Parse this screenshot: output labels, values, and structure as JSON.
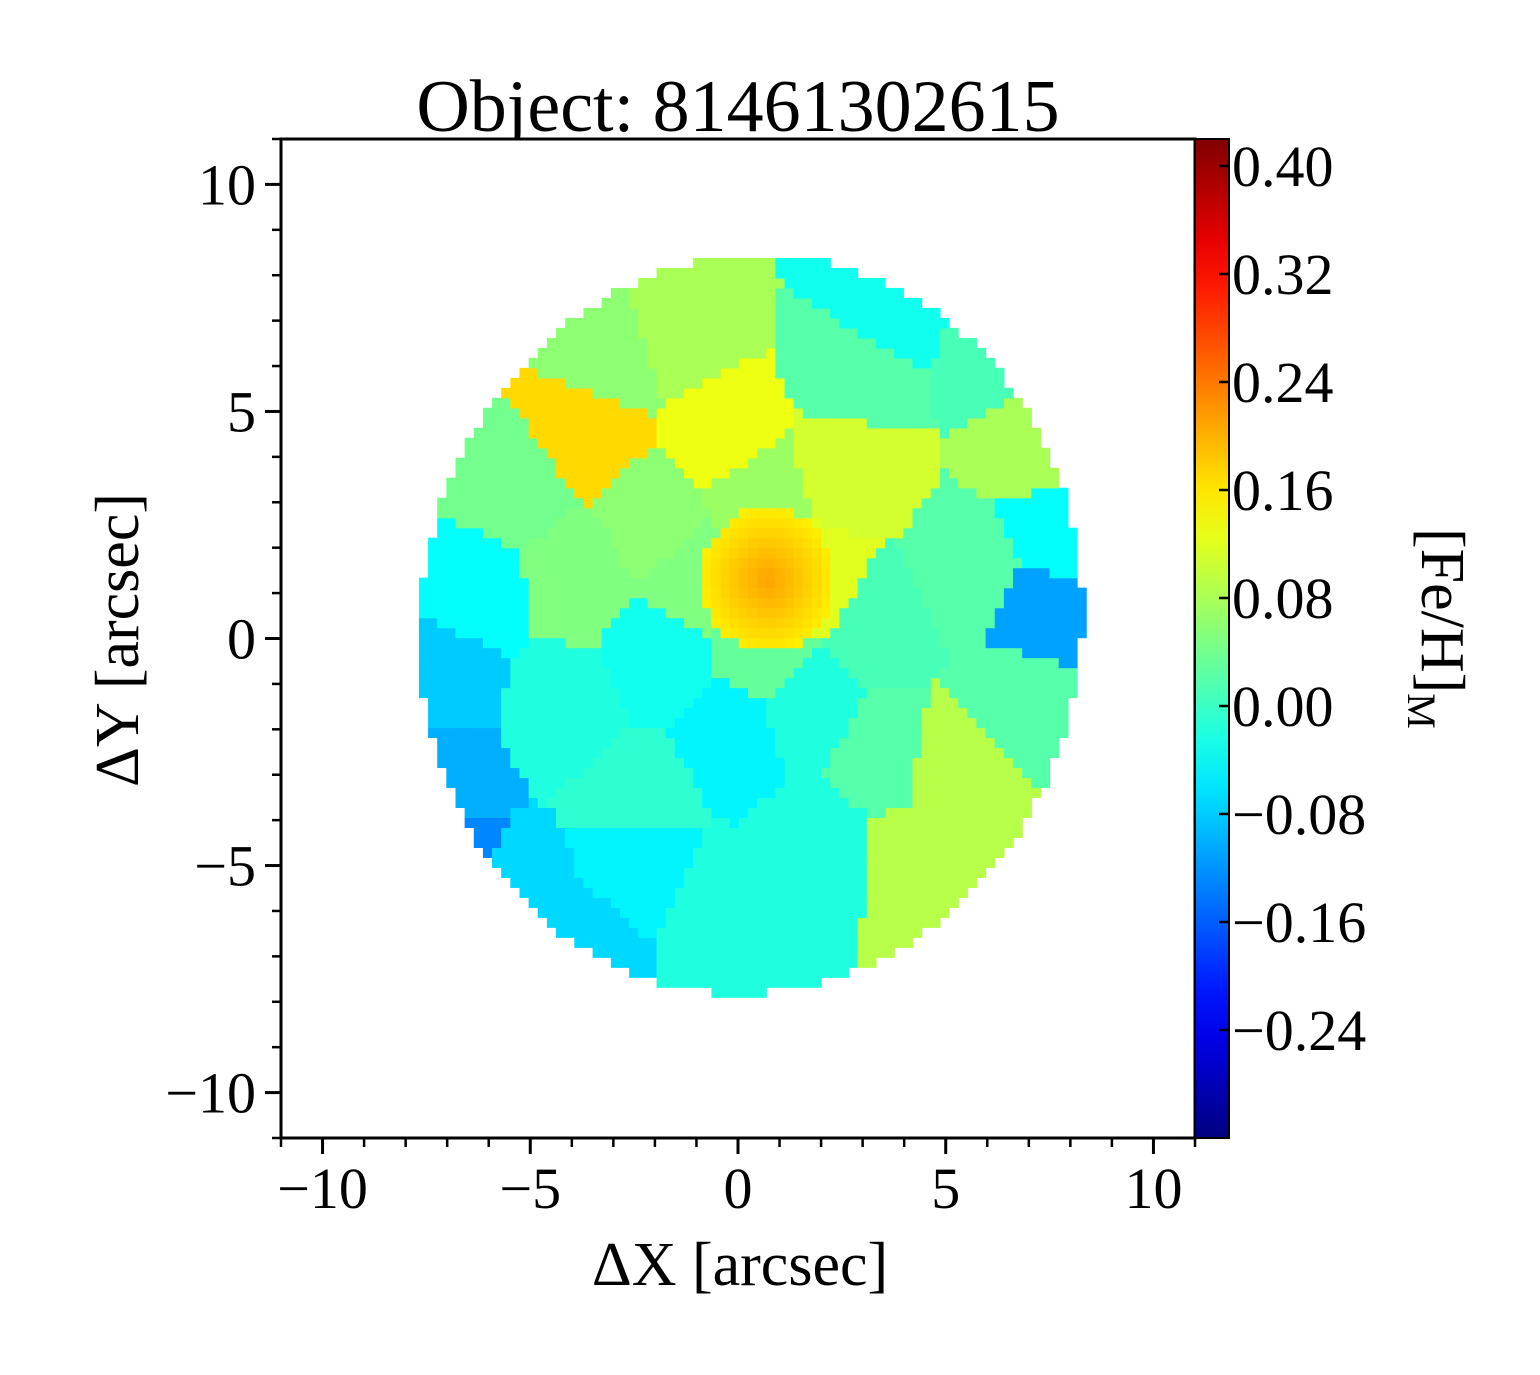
{
  "chart_data": {
    "type": "heatmap",
    "title": "Object: 81461302615",
    "xlabel": "ΔX [arcsec]",
    "ylabel": "ΔY [arcsec]",
    "colorbar_label": "[Fe/H]",
    "colorbar_label_sub": "M",
    "colormap": "jet",
    "xlim": [
      -11,
      11
    ],
    "ylim": [
      -11,
      11
    ],
    "clim": [
      -0.32,
      0.42
    ],
    "x_ticks": [
      {
        "value": -10,
        "label": "−10"
      },
      {
        "value": -5,
        "label": "−5"
      },
      {
        "value": 0,
        "label": "0"
      },
      {
        "value": 5,
        "label": "5"
      },
      {
        "value": 10,
        "label": "10"
      }
    ],
    "y_ticks": [
      {
        "value": 10,
        "label": "10"
      },
      {
        "value": 5,
        "label": "5"
      },
      {
        "value": 0,
        "label": "0"
      },
      {
        "value": -5,
        "label": "−5"
      },
      {
        "value": -10,
        "label": "−10"
      }
    ],
    "colorbar_ticks": [
      {
        "value": 0.4,
        "label": "0.40"
      },
      {
        "value": 0.32,
        "label": "0.32"
      },
      {
        "value": 0.24,
        "label": "0.24"
      },
      {
        "value": 0.16,
        "label": "0.16"
      },
      {
        "value": 0.08,
        "label": "0.08"
      },
      {
        "value": 0.0,
        "label": "0.00"
      },
      {
        "value": -0.08,
        "label": "−0.08"
      },
      {
        "value": -0.16,
        "label": "−0.16"
      },
      {
        "value": -0.24,
        "label": "−0.24"
      }
    ],
    "map_region": {
      "shape": "ellipse",
      "center": [
        0.2,
        0.2
      ],
      "semi_axes": [
        7.9,
        8.2
      ],
      "rotation_deg": -30
    },
    "center_peak": {
      "x": 0.6,
      "y": 1.2,
      "value": 0.21
    },
    "bins": [
      {
        "x": -3.7,
        "y": 4.5,
        "value": 0.17
      },
      {
        "x": -0.5,
        "y": 4.4,
        "value": 0.13
      },
      {
        "x": 2.5,
        "y": 3.6,
        "value": 0.11
      },
      {
        "x": -1.5,
        "y": 6.6,
        "value": 0.08
      },
      {
        "x": -3.2,
        "y": 6.0,
        "value": 0.06
      },
      {
        "x": 3.5,
        "y": 7.1,
        "value": -0.03
      },
      {
        "x": 2.8,
        "y": 5.8,
        "value": 0.02
      },
      {
        "x": 6.2,
        "y": 6.2,
        "value": 0.01
      },
      {
        "x": 7.1,
        "y": 4.2,
        "value": 0.08
      },
      {
        "x": 7.6,
        "y": 2.2,
        "value": -0.04
      },
      {
        "x": 7.1,
        "y": 0.5,
        "value": -0.11
      },
      {
        "x": 5.5,
        "y": 1.3,
        "value": 0.02
      },
      {
        "x": 6.6,
        "y": -1.4,
        "value": 0.02
      },
      {
        "x": 5.0,
        "y": -2.9,
        "value": 0.09
      },
      {
        "x": 4.2,
        "y": -5.0,
        "value": 0.09
      },
      {
        "x": 1.8,
        "y": -4.8,
        "value": -0.02
      },
      {
        "x": -0.6,
        "y": -6.2,
        "value": -0.02
      },
      {
        "x": -2.6,
        "y": -5.2,
        "value": -0.05
      },
      {
        "x": -3.8,
        "y": -6.7,
        "value": -0.07
      },
      {
        "x": -5.5,
        "y": -5.7,
        "value": -0.07
      },
      {
        "x": -6.9,
        "y": -5.0,
        "value": -0.13
      },
      {
        "x": -7.1,
        "y": -3.2,
        "value": -0.1
      },
      {
        "x": -7.2,
        "y": -1.0,
        "value": -0.08
      },
      {
        "x": -6.4,
        "y": 1.0,
        "value": -0.04
      },
      {
        "x": -5.5,
        "y": 3.1,
        "value": 0.04
      },
      {
        "x": -4.1,
        "y": 1.3,
        "value": 0.05
      },
      {
        "x": -4.3,
        "y": -1.7,
        "value": -0.02
      },
      {
        "x": -2.1,
        "y": 2.6,
        "value": 0.06
      },
      {
        "x": -1.9,
        "y": -0.6,
        "value": -0.03
      },
      {
        "x": -0.3,
        "y": -2.1,
        "value": -0.05
      },
      {
        "x": 1.6,
        "y": -1.6,
        "value": -0.02
      },
      {
        "x": 3.2,
        "y": 0.2,
        "value": 0.01
      },
      {
        "x": 3.4,
        "y": -2.6,
        "value": 0.02
      },
      {
        "x": -2.6,
        "y": -3.5,
        "value": -0.01
      },
      {
        "x": 0.4,
        "y": 3.0,
        "value": 0.07
      },
      {
        "x": 1.8,
        "y": 1.1,
        "value": 0.12
      },
      {
        "x": -1.0,
        "y": 1.2,
        "value": 0.05
      },
      {
        "x": 0.5,
        "y": -0.4,
        "value": 0.03
      }
    ]
  }
}
